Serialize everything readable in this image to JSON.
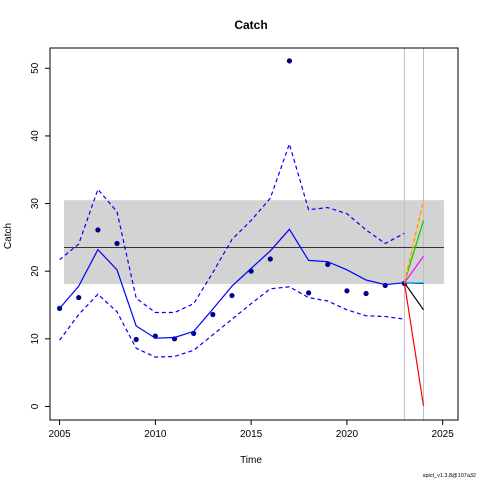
{
  "chart_data": {
    "type": "line",
    "title": "Catch",
    "xlabel": "Time",
    "ylabel": "Catch",
    "xlim": [
      2004.5,
      2025.8
    ],
    "ylim": [
      -2,
      53
    ],
    "x_ticks": [
      2005,
      2010,
      2015,
      2020,
      2025
    ],
    "y_ticks": [
      0,
      10,
      20,
      30,
      40,
      50
    ],
    "reference_band": {
      "low": 18.1,
      "high": 30.5,
      "color": "#d3d3d3"
    },
    "reference_line": {
      "value": 23.5,
      "color": "#333333"
    },
    "vertical_lines": [
      2023,
      2024
    ],
    "grid": false,
    "series": [
      {
        "style": "points",
        "color": "#00008b",
        "x": [
          2005,
          2006,
          2007,
          2008,
          2009,
          2010,
          2011,
          2012,
          2013,
          2014,
          2015,
          2016,
          2017,
          2018,
          2019,
          2020,
          2021,
          2022,
          2023
        ],
        "y": [
          14.5,
          16.1,
          26.1,
          24.1,
          9.9,
          10.4,
          10.0,
          10.8,
          13.6,
          16.4,
          20.0,
          21.8,
          51.1,
          16.8,
          21.0,
          17.1,
          16.7,
          17.9,
          18.2
        ]
      },
      {
        "style": "solid",
        "color": "#0000ff",
        "x": [
          2005,
          2006,
          2007,
          2008,
          2009,
          2010,
          2011,
          2012,
          2013,
          2014,
          2015,
          2016,
          2017,
          2018,
          2019,
          2020,
          2021,
          2022,
          2023
        ],
        "y": [
          14.5,
          17.8,
          23.2,
          20.2,
          11.9,
          10.1,
          10.2,
          11.1,
          14.4,
          17.8,
          20.4,
          23.0,
          26.2,
          21.6,
          21.4,
          20.2,
          18.7,
          18.0,
          18.3
        ]
      },
      {
        "style": "dashed",
        "color": "#0000ff",
        "x": [
          2005,
          2006,
          2007,
          2008,
          2009,
          2010,
          2011,
          2012,
          2013,
          2014,
          2015,
          2016,
          2017,
          2018,
          2019,
          2020,
          2021,
          2022,
          2023
        ],
        "y": [
          21.7,
          24.0,
          32.1,
          28.8,
          16.0,
          13.9,
          13.9,
          15.2,
          19.8,
          24.7,
          27.5,
          30.8,
          38.8,
          29.1,
          29.4,
          28.5,
          26.1,
          24.1,
          25.6
        ]
      },
      {
        "style": "dashed",
        "color": "#0000ff",
        "x": [
          2005,
          2006,
          2007,
          2008,
          2009,
          2010,
          2011,
          2012,
          2013,
          2014,
          2015,
          2016,
          2017,
          2018,
          2019,
          2020,
          2021,
          2022,
          2023
        ],
        "y": [
          9.8,
          13.6,
          16.6,
          14.0,
          8.6,
          7.3,
          7.4,
          8.3,
          10.6,
          12.9,
          15.2,
          17.4,
          17.7,
          16.1,
          15.6,
          14.3,
          13.4,
          13.3,
          12.9
        ]
      },
      {
        "style": "solid",
        "color": "#000000",
        "x": [
          2023,
          2024
        ],
        "y": [
          18.3,
          14.3
        ]
      },
      {
        "style": "solid",
        "color": "#ff0000",
        "x": [
          2023,
          2024
        ],
        "y": [
          18.3,
          0.1
        ]
      },
      {
        "style": "solid",
        "color": "#00cd00",
        "x": [
          2023,
          2024
        ],
        "y": [
          18.3,
          27.5
        ]
      },
      {
        "style": "solid",
        "color": "#0000ff",
        "x": [
          2023,
          2024
        ],
        "y": [
          18.3,
          18.2
        ]
      },
      {
        "style": "solid",
        "color": "#00ced1",
        "x": [
          2023,
          2024
        ],
        "y": [
          18.3,
          18.3
        ]
      },
      {
        "style": "solid",
        "color": "#ff00ff",
        "x": [
          2023,
          2024
        ],
        "y": [
          18.3,
          22.2
        ]
      },
      {
        "style": "solid",
        "color": "#ffd700",
        "x": [
          2023,
          2024
        ],
        "y": [
          18.3,
          30.2
        ]
      },
      {
        "style": "dashed",
        "color": "#ff7f50",
        "x": [
          2023,
          2024
        ],
        "y": [
          18.3,
          30.5
        ]
      }
    ],
    "footer": "spict_v1.3.8@107a32"
  }
}
